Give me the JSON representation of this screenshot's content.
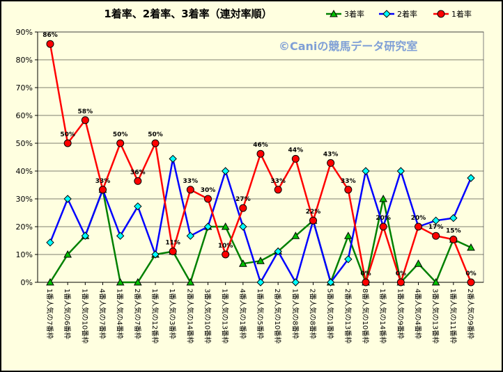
{
  "chart_data": {
    "type": "line",
    "title": "1着率、2着率、3着率（連対率順）",
    "watermark": "©Caniの競馬データ研究室",
    "ylim": [
      0,
      0.9
    ],
    "yticks": [
      "0%",
      "10%",
      "20%",
      "30%",
      "40%",
      "50%",
      "60%",
      "70%",
      "80%",
      "90%"
    ],
    "grid": true,
    "legend": "top-right",
    "categories": [
      "1番人気の7番枠",
      "1番人気の6番枠",
      "1番人気の10番枠",
      "4番人気の7番枠",
      "1番人気の4番枠",
      "2番人気の7番枠",
      "1番人気の12番枠",
      "1番人気の3番枠",
      "2番人気の14番枠",
      "3番人気の10番枠",
      "1番人気の13番枠",
      "4番人気の1番枠",
      "1番人気の5番枠",
      "2番人気の10番枠",
      "1番人気の8番枠",
      "2番人気の8番枠",
      "5番人気の1番枠",
      "2番人気の13番枠",
      "8番人気の10番枠",
      "1番人気の14番枠",
      "1番人気の9番枠",
      "4番人気の4番枠",
      "3番人気の13番枠",
      "1番人気の11番枠",
      "2番人気の9番枠"
    ],
    "series": [
      {
        "name": "3着率",
        "color": "#008000",
        "marker": "triangle",
        "values": [
          0.0,
          0.1,
          0.167,
          0.333,
          0.0,
          0.0,
          0.1,
          0.111,
          0.0,
          0.2,
          0.2,
          0.067,
          0.077,
          0.111,
          0.167,
          0.222,
          0.0,
          0.167,
          0.0,
          0.3,
          0.0,
          0.067,
          0.0,
          0.154,
          0.125
        ]
      },
      {
        "name": "2着率",
        "color": "#0000ff",
        "marker": "diamond",
        "values": [
          0.143,
          0.3,
          0.167,
          0.333,
          0.167,
          0.273,
          0.1,
          0.444,
          0.167,
          0.2,
          0.4,
          0.2,
          0.0,
          0.111,
          0.0,
          0.222,
          0.0,
          0.083,
          0.4,
          0.2,
          0.4,
          0.2,
          0.222,
          0.231,
          0.375
        ]
      },
      {
        "name": "1着率",
        "color": "#ff0000",
        "marker": "circle",
        "values": [
          0.857,
          0.5,
          0.583,
          0.333,
          0.5,
          0.364,
          0.5,
          0.111,
          0.333,
          0.3,
          0.1,
          0.267,
          0.462,
          0.333,
          0.444,
          0.222,
          0.429,
          0.333,
          0.0,
          0.2,
          0.0,
          0.2,
          0.167,
          0.154,
          0.0
        ],
        "data_labels": [
          "86%",
          "50%",
          "58%",
          "33%",
          "50%",
          "36%",
          "50%",
          "11%",
          "33%",
          "30%",
          "10%",
          "27%",
          "46%",
          "33%",
          "44%",
          "22%",
          "43%",
          "33%",
          "0%",
          "20%",
          "0%",
          "20%",
          "17%",
          "15%",
          "0%"
        ]
      }
    ]
  }
}
